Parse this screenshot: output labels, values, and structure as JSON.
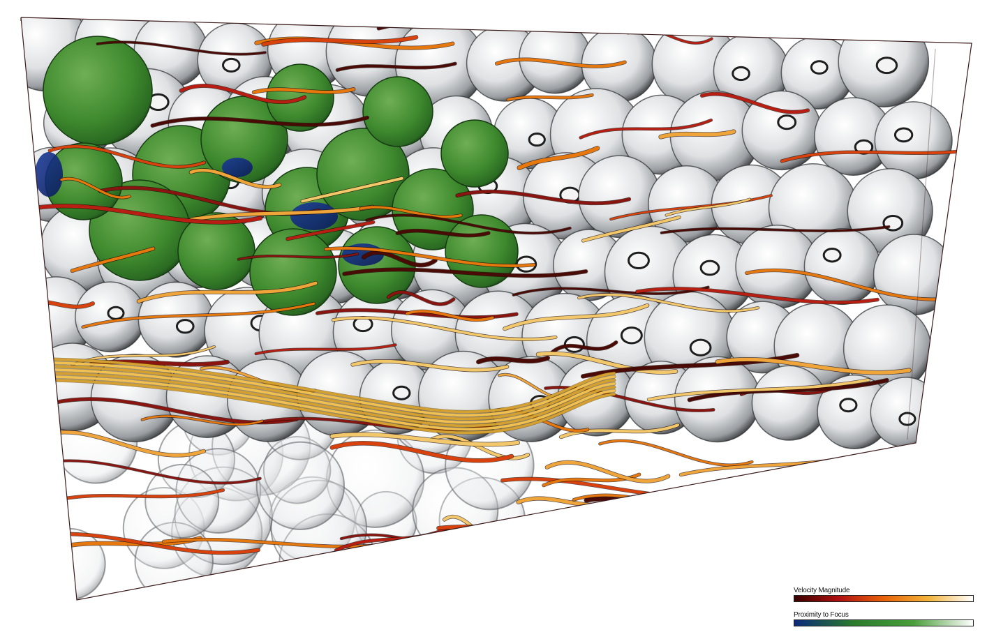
{
  "legends": {
    "velocity": {
      "title": "Velocity Magnitude",
      "colors": [
        "#3a0000",
        "#b01010",
        "#e8620a",
        "#f2b43a",
        "#ffffff"
      ]
    },
    "proximity": {
      "title": "Proximity to Focus",
      "colors": [
        "#0b2a7a",
        "#2a7a2a",
        "#4a9e3a",
        "#ffffff"
      ]
    }
  },
  "colors": {
    "background": "#ffffff",
    "focus_region": "#3a8a2a",
    "focus_deep": "#123a8a",
    "context_spheres": "#d8dadc",
    "box_edge": "#3a1a1a"
  }
}
